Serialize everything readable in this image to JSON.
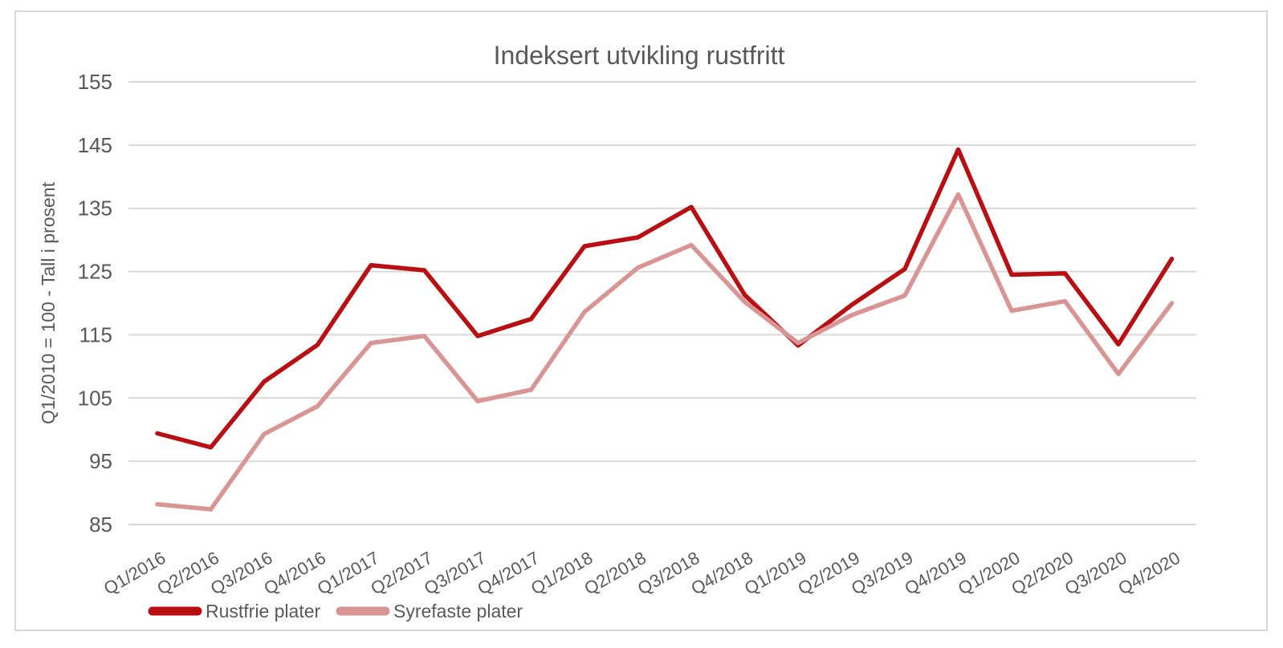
{
  "chart_data": {
    "type": "line",
    "title": "Indeksert utvikling rustfritt",
    "xlabel": "",
    "ylabel": "Q1/2010 = 100 - Tall i prosent",
    "ylim": [
      85,
      155
    ],
    "yticks": [
      85,
      95,
      105,
      115,
      125,
      135,
      145,
      155
    ],
    "grid": true,
    "legend_position": "bottom-left",
    "categories": [
      "Q1/2016",
      "Q2/2016",
      "Q3/2016",
      "Q4/2016",
      "Q1/2017",
      "Q2/2017",
      "Q3/2017",
      "Q4/2017",
      "Q1/2018",
      "Q2/2018",
      "Q3/2018",
      "Q4/2018",
      "Q1/2019",
      "Q2/2019",
      "Q3/2019",
      "Q4/2019",
      "Q1/2020",
      "Q2/2020",
      "Q3/2020",
      "Q4/2020"
    ],
    "series": [
      {
        "name": "Rustfrie plater",
        "color": "#b90e12",
        "values": [
          99.4,
          97.2,
          107.6,
          113.4,
          126.0,
          125.2,
          114.8,
          117.5,
          129.0,
          130.4,
          135.2,
          121.3,
          113.3,
          119.7,
          125.4,
          144.3,
          124.5,
          124.7,
          113.5,
          127.0
        ]
      },
      {
        "name": "Syrefaste plater",
        "color": "#d99594",
        "values": [
          88.2,
          87.4,
          99.3,
          103.7,
          113.7,
          114.8,
          104.5,
          106.3,
          118.6,
          125.6,
          129.2,
          120.2,
          113.7,
          118.1,
          121.2,
          137.2,
          118.8,
          120.3,
          108.8,
          120.0
        ]
      }
    ]
  },
  "colors": {
    "text": "#595959",
    "gridline": "#d9d9d9",
    "frame_border": "#d9d9d9",
    "background": "#ffffff"
  }
}
